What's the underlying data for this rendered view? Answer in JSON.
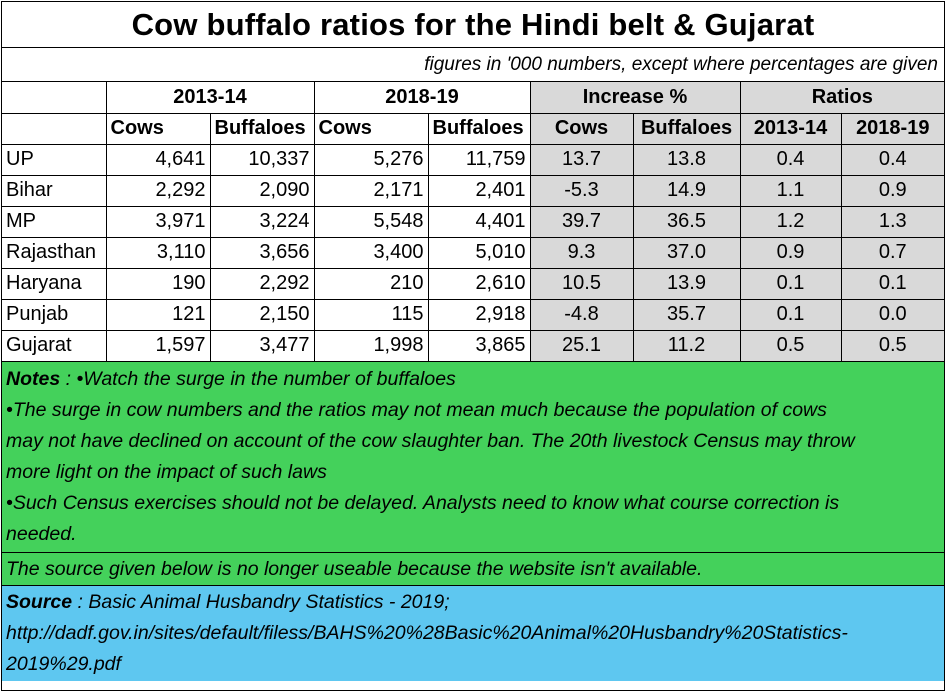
{
  "title": "Cow buffalo ratios for the Hindi belt & Gujarat",
  "subtitle": "figures in '000 numbers, except where percentages are given",
  "groups": [
    "2013-14",
    "2018-19",
    "Increase %",
    "Ratios"
  ],
  "columns": [
    "Cows",
    "Buffaloes",
    "Cows",
    "Buffaloes",
    "Cows",
    "Buffaloes",
    "2013-14",
    "2018-19"
  ],
  "rows": [
    {
      "state": "UP",
      "cows_1314": "4,641",
      "buf_1314": "10,337",
      "cows_1819": "5,276",
      "buf_1819": "11,759",
      "inc_cows": "13.7",
      "inc_buf": "13.8",
      "ratio_1314": "0.4",
      "ratio_1819": "0.4"
    },
    {
      "state": "Bihar",
      "cows_1314": "2,292",
      "buf_1314": "2,090",
      "cows_1819": "2,171",
      "buf_1819": "2,401",
      "inc_cows": "-5.3",
      "inc_buf": "14.9",
      "ratio_1314": "1.1",
      "ratio_1819": "0.9"
    },
    {
      "state": "MP",
      "cows_1314": "3,971",
      "buf_1314": "3,224",
      "cows_1819": "5,548",
      "buf_1819": "4,401",
      "inc_cows": "39.7",
      "inc_buf": "36.5",
      "ratio_1314": "1.2",
      "ratio_1819": "1.3"
    },
    {
      "state": "Rajasthan",
      "cows_1314": "3,110",
      "buf_1314": "3,656",
      "cows_1819": "3,400",
      "buf_1819": "5,010",
      "inc_cows": "9.3",
      "inc_buf": "37.0",
      "ratio_1314": "0.9",
      "ratio_1819": "0.7"
    },
    {
      "state": "Haryana",
      "cows_1314": "190",
      "buf_1314": "2,292",
      "cows_1819": "210",
      "buf_1819": "2,610",
      "inc_cows": "10.5",
      "inc_buf": "13.9",
      "ratio_1314": "0.1",
      "ratio_1819": "0.1"
    },
    {
      "state": "Punjab",
      "cows_1314": "121",
      "buf_1314": "2,150",
      "cows_1819": "115",
      "buf_1819": "2,918",
      "inc_cows": "-4.8",
      "inc_buf": "35.7",
      "ratio_1314": "0.1",
      "ratio_1819": "0.0"
    },
    {
      "state": "Gujarat",
      "cows_1314": "1,597",
      "buf_1314": "3,477",
      "cows_1819": "1,998",
      "buf_1819": "3,865",
      "inc_cows": "25.1",
      "inc_buf": "11.2",
      "ratio_1314": "0.5",
      "ratio_1819": "0.5"
    }
  ],
  "notes": {
    "label": "Notes",
    "first": " :  •Watch the surge in the number of buffaloes",
    "lines": [
      "•The surge in cow numbers and the ratios may not mean much because the population of cows",
      "may not have declined on account of the cow slaughter ban. The 20th livestock Census may throw",
      "more light on the impact of such laws",
      "•Such Census exercises should not be delayed.  Analysts need to know what course correction is",
      "needed."
    ]
  },
  "unavailable": "The source given below is no longer useable because the website isn't available.",
  "source": {
    "label": "Source",
    "first": " : Basic Animal Husbandry Statistics - 2019;",
    "lines": [
      "http://dadf.gov.in/sites/default/filess/BAHS%20%28Basic%20Animal%20Husbandry%20Statistics-",
      "2019%29.pdf"
    ]
  },
  "colors": {
    "notes_bg": "#44d15b",
    "source_bg": "#5ec7f0",
    "grey_bg": "#d9d9d9"
  }
}
